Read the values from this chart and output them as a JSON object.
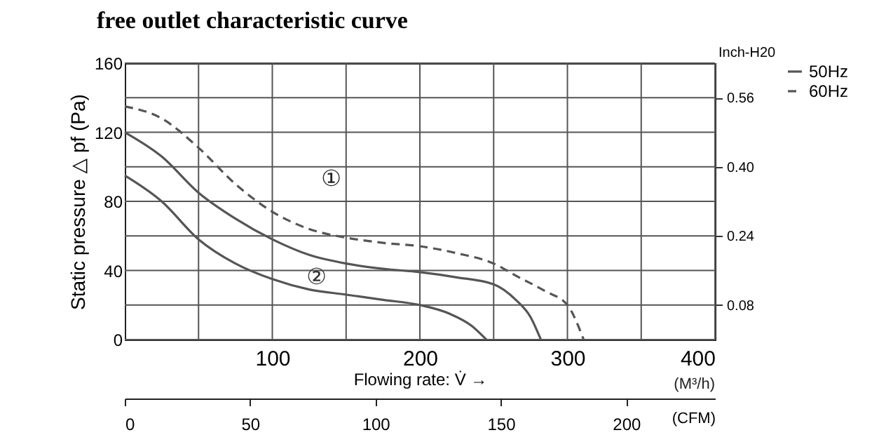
{
  "chart_data": {
    "type": "line",
    "title": "free outlet characteristic curve",
    "xlabel": "Flowing rate: V̇ →",
    "ylabel": "Static pressure △ pf (Pa)",
    "x2label": "(CFM)",
    "y2label": "Inch-H20",
    "xlim": [
      0,
      400
    ],
    "xticks": [
      {
        "value": 50,
        "label": null
      },
      100,
      {
        "value": 150,
        "label": null
      },
      200,
      {
        "value": 250,
        "label": null
      },
      300,
      {
        "value": 350,
        "label": null
      },
      400
    ],
    "ylim": [
      0,
      160
    ],
    "yticks": [
      0,
      {
        "value": 20,
        "label": null
      },
      40,
      {
        "value": 60,
        "label": null
      },
      80,
      {
        "value": 100,
        "label": null
      },
      120,
      {
        "value": 140,
        "label": null
      },
      160
    ],
    "x2lim": [
      0,
      235.4
    ],
    "x2ticks": [
      0,
      50,
      100,
      150,
      200
    ],
    "y2lim": [
      0,
      0.64
    ],
    "y2ticks": [
      {
        "value": 0.08,
        "label": "0.08"
      },
      {
        "value": 0.24,
        "label": "0.24"
      },
      {
        "value": 0.4,
        "label": "0.40"
      },
      {
        "value": 0.56,
        "label": "0.56"
      }
    ],
    "grid": true,
    "legend": "top right",
    "series": [
      {
        "name": "50Hz",
        "color": "#555555",
        "line_style": "solid",
        "x": [
          0,
          25,
          50,
          75,
          100,
          125,
          150,
          175,
          200,
          225,
          250,
          265,
          275,
          282
        ],
        "values": [
          120,
          106,
          85,
          70,
          58,
          49,
          44,
          41,
          39,
          36,
          32,
          23,
          13,
          0
        ]
      },
      {
        "name": "60Hz",
        "color": "#555555",
        "line_style": "dashed",
        "x": [
          0,
          25,
          50,
          75,
          100,
          125,
          150,
          175,
          200,
          225,
          250,
          265,
          285,
          300,
          311
        ],
        "values": [
          135,
          128,
          111,
          90,
          74,
          64,
          59,
          56,
          54,
          50,
          44,
          37,
          28,
          20,
          0
        ]
      },
      {
        "color": "#555555",
        "line_style": "solid",
        "x": [
          0,
          25,
          50,
          75,
          100,
          125,
          150,
          175,
          200,
          220,
          235,
          245
        ],
        "values": [
          95,
          80,
          58,
          44,
          35,
          29,
          26,
          23,
          20,
          15,
          8,
          0
        ]
      }
    ],
    "annotations": [
      "①",
      {
        "text": "②",
        "x": 130,
        "y": 28
      },
      "(M³/h)"
    ]
  }
}
